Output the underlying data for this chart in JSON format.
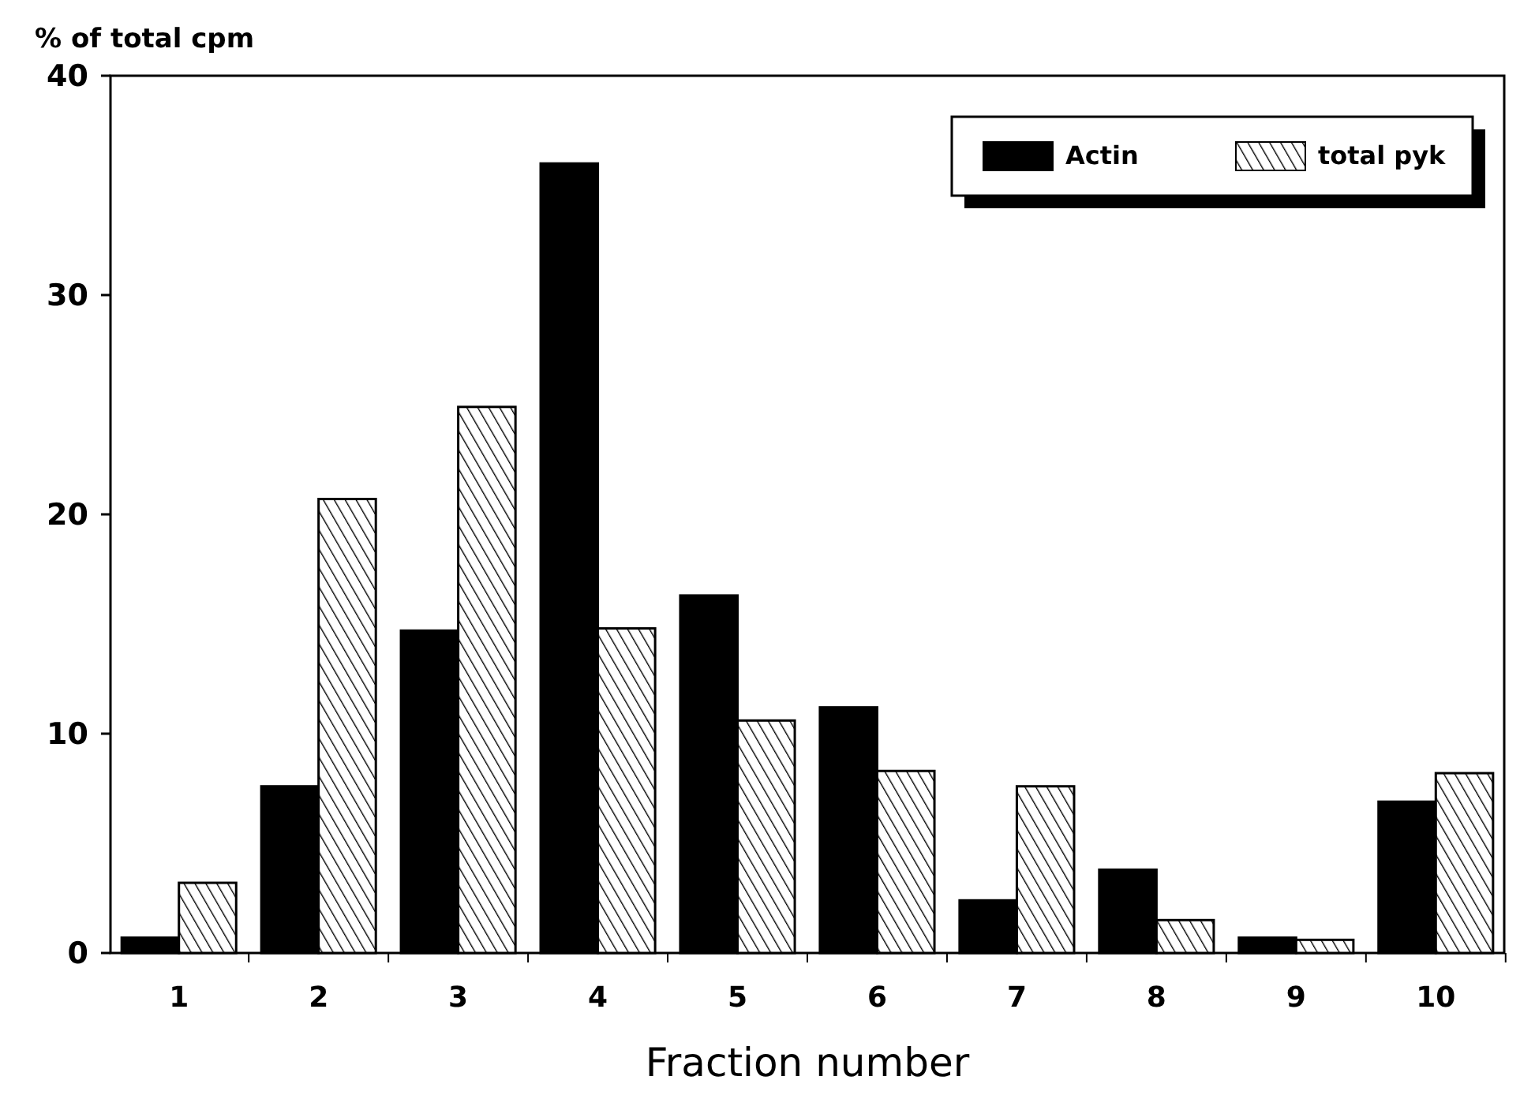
{
  "chart_data": {
    "type": "bar",
    "ylabel": "% of total cpm",
    "xlabel": "Fraction number",
    "categories": [
      "1",
      "2",
      "3",
      "4",
      "5",
      "6",
      "7",
      "8",
      "9",
      "10"
    ],
    "series": [
      {
        "name": "Actin",
        "color": "#000000",
        "values": [
          0.7,
          7.6,
          14.7,
          36.0,
          16.3,
          11.2,
          2.4,
          3.8,
          0.7,
          6.9
        ]
      },
      {
        "name": "total pyk",
        "color": "#000000",
        "values": [
          3.2,
          20.7,
          24.9,
          14.8,
          10.6,
          8.3,
          7.6,
          1.5,
          0.6,
          8.2
        ]
      }
    ],
    "ylim": [
      0,
      40
    ],
    "yticks": [
      0,
      10,
      20,
      30,
      40
    ],
    "grid": false,
    "legend": "top right"
  }
}
